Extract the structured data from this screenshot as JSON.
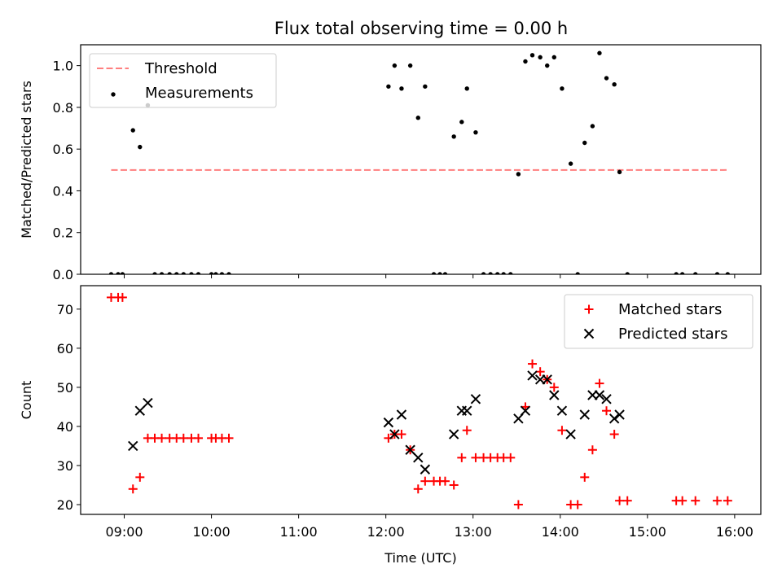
{
  "title": "Flux total observing time = 0.00 h",
  "colors": {
    "threshold": "#ff7f7f",
    "measurements": "#000000",
    "matched": "#ff0000",
    "predicted": "#000000"
  },
  "chart_data": [
    {
      "type": "scatter",
      "ylabel": "Matched/Predicted stars",
      "xlim": [
        8.5,
        16.3
      ],
      "ylim": [
        0,
        1.1
      ],
      "yticks": [
        0.0,
        0.2,
        0.4,
        0.6,
        0.8,
        1.0
      ],
      "ytick_labels": [
        "0.0",
        "0.2",
        "0.4",
        "0.6",
        "0.8",
        "1.0"
      ],
      "legend": {
        "placement": "top-left",
        "entries": [
          "Threshold",
          "Measurements"
        ]
      },
      "threshold": {
        "name": "Threshold",
        "value": 0.5,
        "x_range": [
          8.85,
          15.92
        ]
      },
      "series": [
        {
          "name": "Measurements",
          "x": [
            8.85,
            8.93,
            8.98,
            9.1,
            9.18,
            9.27,
            9.35,
            9.43,
            9.52,
            9.6,
            9.68,
            9.77,
            9.85,
            10.0,
            10.05,
            10.12,
            10.2,
            12.03,
            12.1,
            12.18,
            12.28,
            12.37,
            12.45,
            12.55,
            12.62,
            12.68,
            12.78,
            12.87,
            12.93,
            13.03,
            13.12,
            13.2,
            13.28,
            13.35,
            13.43,
            13.52,
            13.6,
            13.68,
            13.77,
            13.85,
            13.93,
            14.02,
            14.12,
            14.2,
            14.28,
            14.37,
            14.45,
            14.53,
            14.62,
            14.68,
            14.77,
            15.33,
            15.4,
            15.55,
            15.8,
            15.92
          ],
          "y": [
            0,
            0,
            0,
            0.69,
            0.61,
            0.81,
            0,
            0,
            0,
            0,
            0,
            0,
            0,
            0,
            0,
            0,
            0,
            0.9,
            1.0,
            0.89,
            1.0,
            0.75,
            0.9,
            0,
            0,
            0,
            0.66,
            0.73,
            0.89,
            0.68,
            0,
            0,
            0,
            0,
            0,
            0.48,
            1.02,
            1.05,
            1.04,
            1.0,
            1.04,
            0.89,
            0.53,
            0,
            0.63,
            0.71,
            1.06,
            0.94,
            0.91,
            0.49,
            0,
            0,
            0,
            0,
            0,
            0
          ]
        }
      ]
    },
    {
      "type": "scatter",
      "xlabel": "Time (UTC)",
      "ylabel": "Count",
      "xlim": [
        8.5,
        16.3
      ],
      "ylim": [
        17.5,
        76
      ],
      "yticks": [
        20,
        30,
        40,
        50,
        60,
        70
      ],
      "ytick_labels": [
        "20",
        "30",
        "40",
        "50",
        "60",
        "70"
      ],
      "xticks": [
        9,
        10,
        11,
        12,
        13,
        14,
        15,
        16
      ],
      "xtick_labels": [
        "09:00",
        "10:00",
        "11:00",
        "12:00",
        "13:00",
        "14:00",
        "15:00",
        "16:00"
      ],
      "legend": {
        "placement": "top-right",
        "entries": [
          "Matched stars",
          "Predicted stars"
        ]
      },
      "series": [
        {
          "name": "Matched stars",
          "marker": "plus",
          "x": [
            8.85,
            8.93,
            8.98,
            9.1,
            9.18,
            9.27,
            9.35,
            9.43,
            9.52,
            9.6,
            9.68,
            9.77,
            9.85,
            10.0,
            10.05,
            10.12,
            10.2,
            12.03,
            12.1,
            12.18,
            12.28,
            12.37,
            12.45,
            12.55,
            12.62,
            12.68,
            12.78,
            12.87,
            12.93,
            13.03,
            13.12,
            13.2,
            13.28,
            13.35,
            13.43,
            13.52,
            13.6,
            13.68,
            13.77,
            13.85,
            13.93,
            14.02,
            14.12,
            14.2,
            14.28,
            14.37,
            14.45,
            14.53,
            14.62,
            14.68,
            14.77,
            15.33,
            15.4,
            15.55,
            15.8,
            15.92
          ],
          "y": [
            73,
            73,
            73,
            24,
            27,
            37,
            37,
            37,
            37,
            37,
            37,
            37,
            37,
            37,
            37,
            37,
            37,
            37,
            38,
            38,
            34,
            24,
            26,
            26,
            26,
            26,
            25,
            32,
            39,
            32,
            32,
            32,
            32,
            32,
            32,
            20,
            45,
            56,
            54,
            52,
            50,
            39,
            20,
            20,
            27,
            34,
            51,
            44,
            38,
            21,
            21,
            21,
            21,
            21,
            21,
            21
          ]
        },
        {
          "name": "Predicted stars",
          "marker": "x",
          "x": [
            9.1,
            9.18,
            9.27,
            12.03,
            12.1,
            12.18,
            12.28,
            12.37,
            12.45,
            12.78,
            12.87,
            12.93,
            13.03,
            13.52,
            13.6,
            13.68,
            13.77,
            13.85,
            13.93,
            14.02,
            14.12,
            14.28,
            14.37,
            14.45,
            14.53,
            14.62,
            14.68
          ],
          "y": [
            35,
            44,
            46,
            41,
            38,
            43,
            34,
            32,
            29,
            38,
            44,
            44,
            47,
            42,
            44,
            53,
            52,
            52,
            48,
            44,
            38,
            43,
            48,
            48,
            47,
            42,
            43
          ]
        }
      ]
    }
  ]
}
